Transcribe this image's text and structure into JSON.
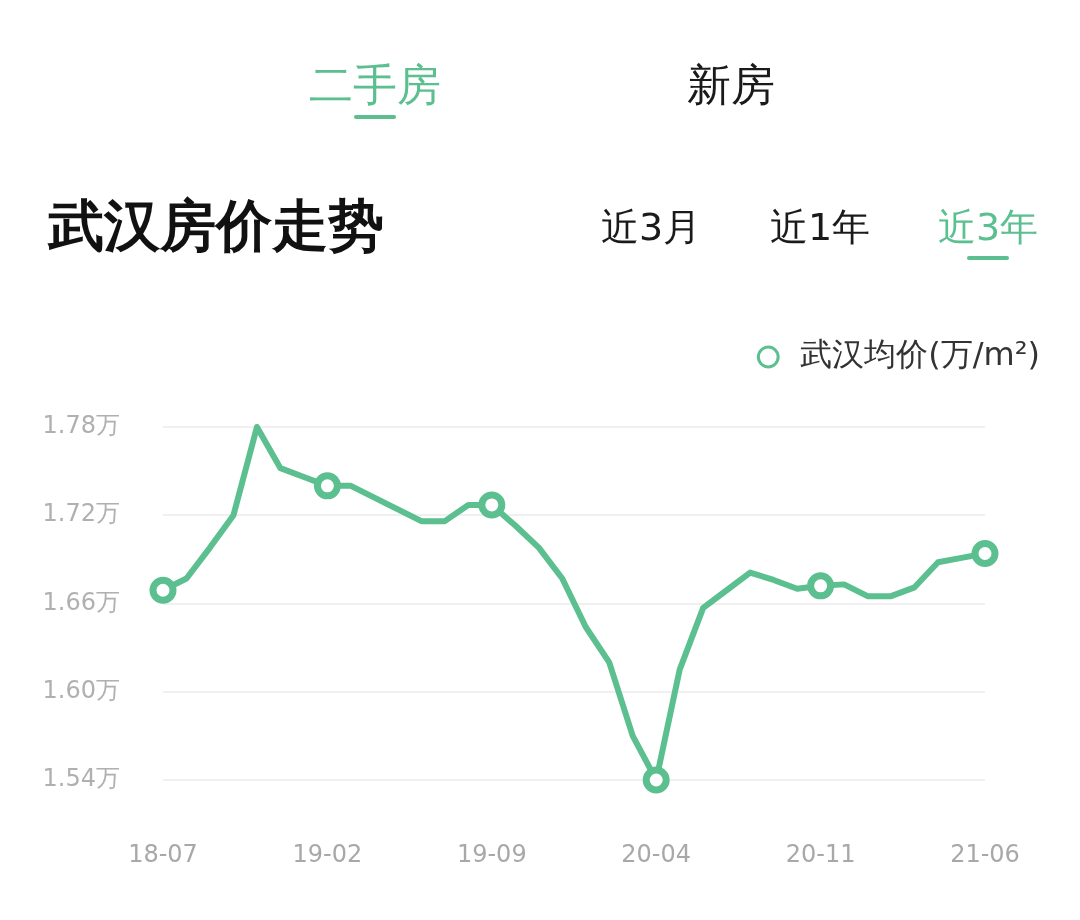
{
  "chart_data": {
    "type": "line",
    "title": "武汉房价走势",
    "annotations": [
      "二手房",
      "新房",
      "近3月",
      "近1年",
      "近3年"
    ],
    "categories": [
      "18-07",
      null,
      null,
      null,
      null,
      null,
      null,
      "19-02",
      null,
      null,
      null,
      null,
      null,
      null,
      "19-09",
      null,
      null,
      null,
      null,
      null,
      null,
      "20-04",
      null,
      null,
      null,
      null,
      null,
      null,
      "20-11",
      null,
      null,
      null,
      null,
      null,
      null,
      "21-06"
    ],
    "series": [
      {
        "name": "武汉均价(万/m²)",
        "color": "#5bbf90",
        "values": [
          1.669,
          1.677,
          1.698,
          1.72,
          1.78,
          1.752,
          1.746,
          1.74,
          1.74,
          1.732,
          1.724,
          1.716,
          1.716,
          1.727,
          1.727,
          1.713,
          1.698,
          1.677,
          1.644,
          1.62,
          1.57,
          1.54,
          1.615,
          1.657,
          1.669,
          1.681,
          1.676,
          1.67,
          1.672,
          1.673,
          1.665,
          1.665,
          1.671,
          1.688,
          1.691,
          1.694
        ]
      },
      {
        "type": "scatter",
        "marker": "circle",
        "color": "#5bbf90",
        "values": [
          1.669,
          null,
          null,
          null,
          null,
          null,
          null,
          1.74,
          null,
          null,
          null,
          null,
          null,
          null,
          1.727,
          null,
          null,
          null,
          null,
          null,
          null,
          1.54,
          null,
          null,
          null,
          null,
          null,
          null,
          1.672,
          null,
          null,
          null,
          null,
          null,
          null,
          1.694
        ]
      }
    ],
    "ylim": [
      1.54,
      1.78
    ],
    "yticks": [
      {
        "value": 1.54,
        "label": "1.54万"
      },
      {
        "value": 1.6,
        "label": "1.60万"
      },
      {
        "value": 1.66,
        "label": "1.66万"
      },
      {
        "value": 1.72,
        "label": "1.72万"
      },
      {
        "value": 1.78,
        "label": "1.78万"
      }
    ],
    "grid": "y",
    "legend": "top right"
  }
}
